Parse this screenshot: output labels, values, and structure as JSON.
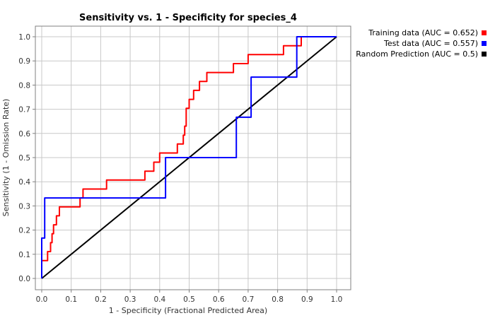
{
  "chart_data": {
    "type": "line",
    "title": "Sensitivity vs. 1 - Specificity for species_4",
    "xlabel": "1 - Specificity  (Fractional Predicted Area)",
    "ylabel": "Sensitivity  (1 - Omission Rate)",
    "xlim": [
      0,
      1
    ],
    "ylim": [
      0,
      1
    ],
    "xticks": [
      "0.0",
      "0.1",
      "0.2",
      "0.3",
      "0.4",
      "0.5",
      "0.6",
      "0.7",
      "0.8",
      "0.9",
      "1.0"
    ],
    "yticks": [
      "0.0",
      "0.1",
      "0.2",
      "0.3",
      "0.4",
      "0.5",
      "0.6",
      "0.7",
      "0.8",
      "0.9",
      "1.0"
    ],
    "grid": true,
    "legend_position": "top-right, outside plot",
    "series": [
      {
        "name": "Training data (AUC = 0.652)",
        "color": "#ff0000",
        "step": true,
        "points": [
          [
            0,
            0
          ],
          [
            0,
            0.074
          ],
          [
            0.02,
            0.074
          ],
          [
            0.02,
            0.111
          ],
          [
            0.03,
            0.111
          ],
          [
            0.03,
            0.148
          ],
          [
            0.035,
            0.148
          ],
          [
            0.035,
            0.185
          ],
          [
            0.04,
            0.185
          ],
          [
            0.04,
            0.222
          ],
          [
            0.05,
            0.222
          ],
          [
            0.05,
            0.259
          ],
          [
            0.06,
            0.259
          ],
          [
            0.06,
            0.296
          ],
          [
            0.13,
            0.296
          ],
          [
            0.13,
            0.333
          ],
          [
            0.14,
            0.333
          ],
          [
            0.14,
            0.37
          ],
          [
            0.22,
            0.37
          ],
          [
            0.22,
            0.407
          ],
          [
            0.35,
            0.407
          ],
          [
            0.35,
            0.444
          ],
          [
            0.38,
            0.444
          ],
          [
            0.38,
            0.481
          ],
          [
            0.4,
            0.481
          ],
          [
            0.4,
            0.519
          ],
          [
            0.46,
            0.519
          ],
          [
            0.46,
            0.556
          ],
          [
            0.48,
            0.556
          ],
          [
            0.48,
            0.593
          ],
          [
            0.485,
            0.593
          ],
          [
            0.485,
            0.63
          ],
          [
            0.49,
            0.63
          ],
          [
            0.49,
            0.667
          ],
          [
            0.49,
            0.704
          ],
          [
            0.5,
            0.704
          ],
          [
            0.5,
            0.741
          ],
          [
            0.515,
            0.741
          ],
          [
            0.515,
            0.778
          ],
          [
            0.535,
            0.778
          ],
          [
            0.535,
            0.815
          ],
          [
            0.56,
            0.815
          ],
          [
            0.56,
            0.852
          ],
          [
            0.65,
            0.852
          ],
          [
            0.65,
            0.889
          ],
          [
            0.7,
            0.889
          ],
          [
            0.7,
            0.926
          ],
          [
            0.82,
            0.926
          ],
          [
            0.82,
            0.963
          ],
          [
            0.88,
            0.963
          ],
          [
            0.88,
            1.0
          ],
          [
            1.0,
            1.0
          ]
        ]
      },
      {
        "name": "Test data (AUC = 0.557)",
        "color": "#0000ff",
        "step": true,
        "points": [
          [
            0,
            0
          ],
          [
            0,
            0.167
          ],
          [
            0.01,
            0.167
          ],
          [
            0.01,
            0.333
          ],
          [
            0.42,
            0.333
          ],
          [
            0.42,
            0.5
          ],
          [
            0.66,
            0.5
          ],
          [
            0.66,
            0.667
          ],
          [
            0.71,
            0.667
          ],
          [
            0.71,
            0.833
          ],
          [
            0.865,
            0.833
          ],
          [
            0.865,
            1.0
          ],
          [
            1.0,
            1.0
          ]
        ]
      },
      {
        "name": "Random Prediction (AUC = 0.5)",
        "color": "#000000",
        "step": false,
        "points": [
          [
            0,
            0
          ],
          [
            1,
            1
          ]
        ]
      }
    ]
  }
}
